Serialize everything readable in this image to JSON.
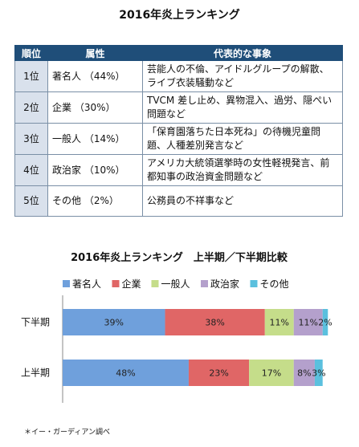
{
  "table": {
    "title": "2016年炎上ランキング",
    "headers": [
      "順位",
      "属性",
      "代表的な事象"
    ],
    "rows": [
      {
        "rank": "1位",
        "attr": "著名人 （44%）",
        "event": "芸能人の不倫、アイドルグループの解散、ライブ衣装騒動など"
      },
      {
        "rank": "2位",
        "attr": "企業 （30%）",
        "event": "TVCM 差し止め、異物混入、過労、隠ぺい問題など"
      },
      {
        "rank": "3位",
        "attr": "一般人 （14%）",
        "event": "「保育園落ちた日本死ね」の待機児童問題、人種差別発言など"
      },
      {
        "rank": "4位",
        "attr": "政治家 （10%）",
        "event": "アメリカ大統領選挙時の女性軽視発言、前都知事の政治資金問題など"
      },
      {
        "rank": "5位",
        "attr": "その他 （2%）",
        "event": "公務員の不祥事など"
      }
    ]
  },
  "chart_data": {
    "type": "bar",
    "orientation": "horizontal",
    "stacked": "100%",
    "title": "2016年炎上ランキング　上半期／下半期比較",
    "legend_position": "top",
    "categories": [
      "下半期",
      "上半期"
    ],
    "series": [
      {
        "name": "著名人",
        "color": "#6fa0dc",
        "values": [
          39,
          48
        ]
      },
      {
        "name": "企業",
        "color": "#e06666",
        "values": [
          38,
          23
        ]
      },
      {
        "name": "一般人",
        "color": "#c5dd8a",
        "values": [
          11,
          17
        ]
      },
      {
        "name": "政治家",
        "color": "#b4a0cc",
        "values": [
          11,
          8
        ]
      },
      {
        "name": "その他",
        "color": "#5bc0de",
        "values": [
          2,
          3
        ]
      }
    ],
    "data_labels": [
      [
        "39%",
        "38%",
        "11%",
        "11%",
        "2%"
      ],
      [
        "48%",
        "23%",
        "17%",
        "8%",
        "3%"
      ]
    ]
  },
  "footnote": "＊イー・ガーディアン調べ"
}
